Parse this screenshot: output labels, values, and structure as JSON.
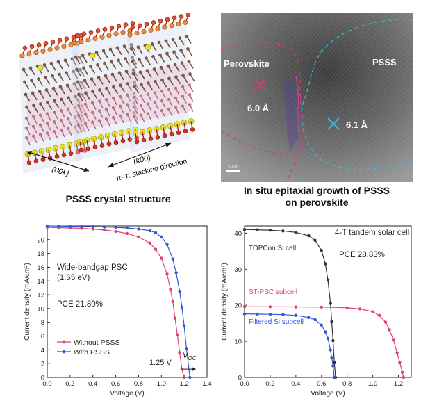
{
  "panel_a": {
    "caption": "PSSS crystal structure",
    "label_00k": "(00k)",
    "label_k00": "(k00)",
    "label_stacking": "π- π stacking direction"
  },
  "panel_b": {
    "caption_line1": "In situ epitaxial growth of PSSS",
    "caption_line2": "on perovskite",
    "label_perovskite": "Perovskite",
    "label_psss": "PSSS",
    "d_perovskite": "6.0 Å",
    "d_psss": "6.1 Å",
    "scale_bar": "5 nm",
    "colors": {
      "perovskite_marker": "#e8337a",
      "psss_marker": "#38b6d8"
    }
  },
  "chart_data": [
    {
      "type": "line",
      "xlabel": "Voltage (V)",
      "ylabel": "Current density (mA/cm²)",
      "xlim": [
        0.0,
        1.4
      ],
      "ylim": [
        0,
        22
      ],
      "xticks": [
        "0.0",
        "0.2",
        "0.4",
        "0.6",
        "0.8",
        "1.0",
        "1.2",
        "1.4"
      ],
      "yticks": [
        "0",
        "2",
        "4",
        "6",
        "8",
        "10",
        "12",
        "14",
        "16",
        "18",
        "20"
      ],
      "annotations": [
        "Wide-bandgap PSC",
        "(1.65 eV)",
        "PCE 21.80%",
        "1.25 V"
      ],
      "voc_label": "V",
      "voc_sub": "OC",
      "series": [
        {
          "name": "Without PSSS",
          "color": "#e0407a",
          "x": [
            0.0,
            0.1,
            0.2,
            0.3,
            0.4,
            0.5,
            0.6,
            0.7,
            0.8,
            0.9,
            0.95,
            1.0,
            1.05,
            1.08,
            1.1,
            1.12,
            1.14,
            1.16,
            1.18,
            1.2
          ],
          "y": [
            21.8,
            21.75,
            21.7,
            21.65,
            21.55,
            21.4,
            21.2,
            20.9,
            20.4,
            19.5,
            18.6,
            17.3,
            15.0,
            12.8,
            11.0,
            8.6,
            6.2,
            3.6,
            1.2,
            0
          ]
        },
        {
          "name": "With PSSS",
          "color": "#3355d8",
          "x": [
            0.0,
            0.1,
            0.2,
            0.3,
            0.4,
            0.5,
            0.6,
            0.7,
            0.8,
            0.9,
            0.95,
            1.0,
            1.05,
            1.1,
            1.13,
            1.16,
            1.18,
            1.2,
            1.22,
            1.25
          ],
          "y": [
            22.0,
            21.98,
            21.95,
            21.9,
            21.88,
            21.85,
            21.8,
            21.7,
            21.55,
            21.3,
            21.0,
            20.4,
            19.3,
            17.2,
            15.2,
            12.5,
            10.2,
            7.5,
            4.2,
            0
          ]
        }
      ]
    },
    {
      "type": "line",
      "title": "4-T tandem solar cell",
      "xlabel": "Voltage (V)",
      "ylabel": "Current density (mA/cm²)",
      "xlim": [
        0.0,
        1.3
      ],
      "ylim": [
        0,
        42
      ],
      "xticks": [
        "0.0",
        "0.2",
        "0.4",
        "0.6",
        "0.8",
        "1.0",
        "1.2"
      ],
      "yticks": [
        "0",
        "10",
        "20",
        "30",
        "40"
      ],
      "annotations": [
        "PCE 28.83%"
      ],
      "series": [
        {
          "name": "TOPCon Si cell",
          "color": "#333333",
          "x": [
            0.0,
            0.1,
            0.2,
            0.3,
            0.4,
            0.5,
            0.55,
            0.6,
            0.63,
            0.65,
            0.67,
            0.68,
            0.69,
            0.7,
            0.71
          ],
          "y": [
            41.0,
            40.9,
            40.8,
            40.6,
            40.2,
            39.3,
            38.0,
            35.2,
            31.5,
            27.0,
            20.5,
            15.5,
            10.2,
            4.2,
            0
          ]
        },
        {
          "name": "ST-PSC subcell",
          "color": "#e0407a",
          "x": [
            0.0,
            0.2,
            0.4,
            0.6,
            0.8,
            0.9,
            1.0,
            1.05,
            1.1,
            1.13,
            1.16,
            1.19,
            1.21,
            1.23,
            1.24
          ],
          "y": [
            19.6,
            19.6,
            19.55,
            19.5,
            19.3,
            19.0,
            18.2,
            17.2,
            15.3,
            13.2,
            10.4,
            6.8,
            4.2,
            1.4,
            0
          ]
        },
        {
          "name": "Filtered Si subcell",
          "color": "#3355d8",
          "x": [
            0.0,
            0.1,
            0.2,
            0.3,
            0.4,
            0.5,
            0.55,
            0.6,
            0.63,
            0.65,
            0.67,
            0.68,
            0.69,
            0.7
          ],
          "y": [
            17.6,
            17.55,
            17.5,
            17.4,
            17.2,
            16.6,
            16.0,
            14.5,
            12.6,
            10.8,
            7.6,
            5.5,
            3.2,
            0
          ]
        }
      ]
    }
  ]
}
